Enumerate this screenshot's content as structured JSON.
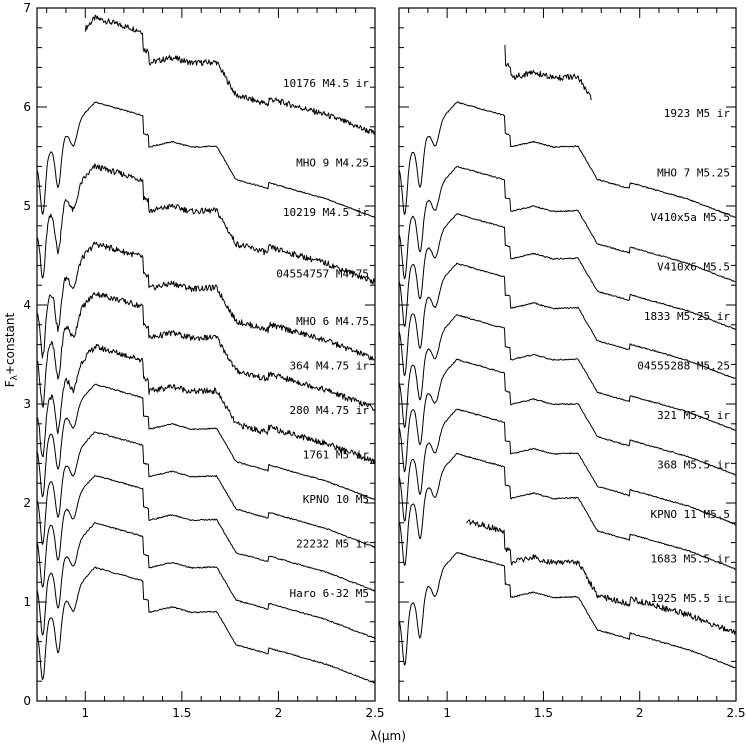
{
  "chart_data": [
    {
      "type": "line",
      "panel": "left",
      "xlabel": "λ(μm)",
      "ylabel": "F_λ+constant",
      "xlim": [
        0.75,
        2.5
      ],
      "ylim": [
        0,
        7
      ],
      "xticks": [
        1,
        1.5,
        2,
        2.5
      ],
      "xtick_labels": [
        "1",
        "1.5",
        "2",
        "2.5"
      ],
      "yticks": [
        0,
        1,
        2,
        3,
        4,
        5,
        6,
        7
      ],
      "ytick_labels": [
        "0",
        "1",
        "2",
        "3",
        "4",
        "5",
        "6",
        "7"
      ],
      "series": [
        {
          "name": "10176 M4.5 ir",
          "offset": 5.9,
          "noisy": true,
          "start": 1.0
        },
        {
          "name": "MHO 9 M4.25",
          "offset": 5.05,
          "noisy": false,
          "start": 0.75
        },
        {
          "name": "10219 M4.5 ir",
          "offset": 4.4,
          "noisy": true,
          "start": 0.75
        },
        {
          "name": "04554757 M4.75",
          "offset": 3.62,
          "noisy": true,
          "start": 0.75
        },
        {
          "name": "MHO 6 M4.75",
          "offset": 3.12,
          "noisy": true,
          "start": 0.75
        },
        {
          "name": "364 M4.75 ir",
          "offset": 2.58,
          "noisy": true,
          "start": 0.75
        },
        {
          "name": "280 M4.75 ir",
          "offset": 2.2,
          "noisy": false,
          "start": 0.75
        },
        {
          "name": "1761 M5 ir",
          "offset": 1.72,
          "noisy": false,
          "start": 0.75
        },
        {
          "name": "KPNO 10 M5",
          "offset": 1.28,
          "noisy": false,
          "start": 0.75
        },
        {
          "name": "22232 M5 ir",
          "offset": 0.8,
          "noisy": false,
          "start": 0.75
        },
        {
          "name": "Haro 6-32 M5",
          "offset": 0.35,
          "noisy": false,
          "start": 0.75
        }
      ],
      "labels_y": [
        6.2,
        5.4,
        4.9,
        4.28,
        3.8,
        3.35,
        2.9,
        2.45,
        2.0,
        1.55,
        1.05
      ]
    },
    {
      "type": "line",
      "panel": "right",
      "xlabel": "",
      "ylabel": "",
      "xlim": [
        0.75,
        2.5
      ],
      "ylim": [
        0,
        7
      ],
      "xticks": [
        1,
        1.5,
        2,
        2.5
      ],
      "xtick_labels": [
        "1",
        "1.5",
        "2",
        "2.5"
      ],
      "yticks": [
        0,
        1,
        2,
        3,
        4,
        5,
        6,
        7
      ],
      "series": [
        {
          "name": "1923 M5 ir",
          "offset": 5.75,
          "noisy": true,
          "start": 1.3,
          "end": 1.75
        },
        {
          "name": "MHO 7 M5.25",
          "offset": 5.05,
          "noisy": false,
          "start": 0.75
        },
        {
          "name": "V410x5a M5.5",
          "offset": 4.4,
          "noisy": false,
          "start": 0.75
        },
        {
          "name": "V410x6 M5.5",
          "offset": 3.92,
          "noisy": false,
          "start": 0.75
        },
        {
          "name": "1833 M5.25 ir",
          "offset": 3.42,
          "noisy": false,
          "start": 0.75
        },
        {
          "name": "04555288 M5.25",
          "offset": 2.9,
          "noisy": false,
          "start": 0.75
        },
        {
          "name": "321 M5.5 ir",
          "offset": 2.45,
          "noisy": false,
          "start": 0.75
        },
        {
          "name": "368 M5.5 ir",
          "offset": 1.95,
          "noisy": false,
          "start": 0.75
        },
        {
          "name": "KPNO 11 M5.5",
          "offset": 1.5,
          "noisy": false,
          "start": 0.75
        },
        {
          "name": "1683 M5.5 ir",
          "offset": 0.85,
          "noisy": true,
          "start": 1.1
        },
        {
          "name": "1925 M5.5 ir",
          "offset": 0.5,
          "noisy": false,
          "start": 0.75
        }
      ],
      "labels_y": [
        5.9,
        5.3,
        4.85,
        4.35,
        3.85,
        3.35,
        2.85,
        2.35,
        1.85,
        1.4,
        1.0
      ]
    }
  ]
}
